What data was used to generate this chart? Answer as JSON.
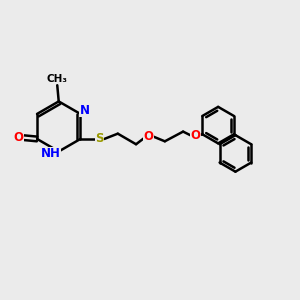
{
  "bg_color": "#ebebeb",
  "bond_color": "#000000",
  "bond_width": 1.8,
  "atom_colors": {
    "N": "#0000ff",
    "O": "#ff0000",
    "S": "#999900",
    "C": "#000000",
    "H": "#008080"
  },
  "font_size": 8.5,
  "fig_size": [
    3.0,
    3.0
  ],
  "dpi": 100
}
